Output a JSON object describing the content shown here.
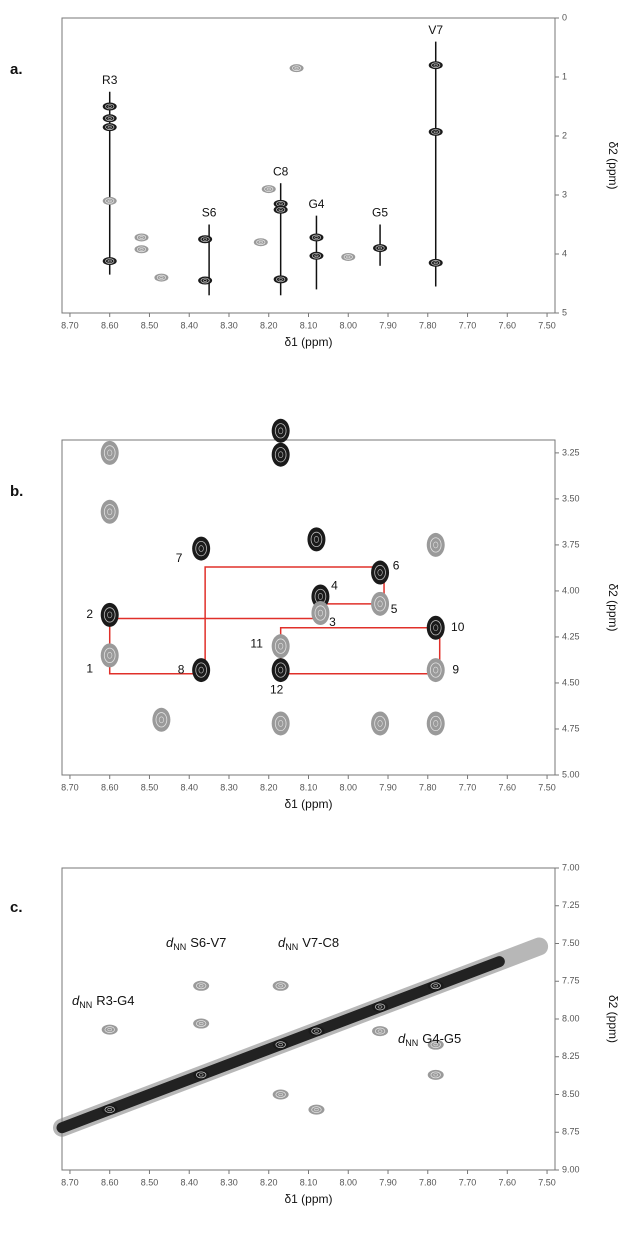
{
  "chart_data": [
    {
      "type": "scatter",
      "panel_label": "a.",
      "x_label": "δ1 (ppm)",
      "y_label": "δ2 (ppm)",
      "xlim": [
        8.72,
        7.48
      ],
      "xticks": [
        {
          "value": 8.7,
          "label": "8.70"
        },
        {
          "value": 8.6,
          "label": "8.60"
        },
        {
          "value": 8.5,
          "label": "8.50"
        },
        {
          "value": 8.4,
          "label": "8.40"
        },
        {
          "value": 8.3,
          "label": "8.30"
        },
        {
          "value": 8.2,
          "label": "8.20"
        },
        {
          "value": 8.1,
          "label": "8.10"
        },
        {
          "value": 8.0,
          "label": "8.00"
        },
        {
          "value": 7.9,
          "label": "7.90"
        },
        {
          "value": 7.8,
          "label": "7.80"
        },
        {
          "value": 7.7,
          "label": "7.70"
        },
        {
          "value": 7.6,
          "label": "7.60"
        },
        {
          "value": 7.5,
          "label": "7.50"
        }
      ],
      "ylim": [
        0,
        5
      ],
      "yticks": [
        0,
        1,
        2,
        3,
        4,
        5
      ],
      "strips": [
        {
          "label": "R3",
          "x": 8.6,
          "y": [
            1.25,
            4.35
          ]
        },
        {
          "label": "S6",
          "x": 8.35,
          "y": [
            3.5,
            4.7
          ]
        },
        {
          "label": "C8",
          "x": 8.17,
          "y": [
            2.8,
            4.7
          ]
        },
        {
          "label": "G4",
          "x": 8.08,
          "y": [
            3.35,
            4.6
          ]
        },
        {
          "label": "G5",
          "x": 7.92,
          "y": [
            3.5,
            4.2
          ]
        },
        {
          "label": "V7",
          "x": 7.78,
          "y": [
            0.4,
            4.55
          ]
        }
      ],
      "series": [
        {
          "color": "#1a1a1a",
          "x": [
            8.6,
            8.6,
            8.6,
            8.6,
            8.36,
            8.36,
            8.17,
            8.17,
            8.17,
            8.08,
            8.08,
            7.92,
            7.78,
            7.78,
            7.78
          ],
          "y": [
            1.5,
            1.7,
            1.85,
            4.12,
            3.75,
            4.45,
            3.15,
            3.25,
            4.43,
            3.72,
            4.03,
            3.9,
            0.8,
            1.93,
            4.15
          ]
        },
        {
          "color": "#9a9a9a",
          "x": [
            8.6,
            8.52,
            8.52,
            8.47,
            8.13,
            8.22,
            8.0,
            8.2
          ],
          "y": [
            3.1,
            3.72,
            3.92,
            4.4,
            0.85,
            3.8,
            4.05,
            2.9
          ]
        }
      ]
    },
    {
      "type": "scatter",
      "panel_label": "b.",
      "x_label": "δ1 (ppm)",
      "y_label": "δ2 (ppm)",
      "xlim": [
        8.72,
        7.48
      ],
      "xticks": [
        {
          "value": 8.7,
          "label": "8.70"
        },
        {
          "value": 8.6,
          "label": "8.60"
        },
        {
          "value": 8.5,
          "label": "8.50"
        },
        {
          "value": 8.4,
          "label": "8.40"
        },
        {
          "value": 8.3,
          "label": "8.30"
        },
        {
          "value": 8.2,
          "label": "8.20"
        },
        {
          "value": 8.1,
          "label": "8.10"
        },
        {
          "value": 8.0,
          "label": "8.00"
        },
        {
          "value": 7.9,
          "label": "7.90"
        },
        {
          "value": 7.8,
          "label": "7.80"
        },
        {
          "value": 7.7,
          "label": "7.70"
        },
        {
          "value": 7.6,
          "label": "7.60"
        },
        {
          "value": 7.5,
          "label": "7.50"
        }
      ],
      "ylim": [
        3.18,
        5.0
      ],
      "yticks": [
        {
          "value": 3.25,
          "label": "3.25"
        },
        {
          "value": 3.5,
          "label": "3.50"
        },
        {
          "value": 3.75,
          "label": "3.75"
        },
        {
          "value": 4.0,
          "label": "4.00"
        },
        {
          "value": 4.25,
          "label": "4.25"
        },
        {
          "value": 4.5,
          "label": "4.50"
        },
        {
          "value": 4.75,
          "label": "4.75"
        },
        {
          "value": 5.0,
          "label": "5.00"
        }
      ],
      "walk": {
        "color": "#e0302a",
        "x": [
          8.6,
          8.6,
          8.36,
          8.36,
          7.91,
          7.91,
          8.06,
          8.06,
          8.6,
          null,
          8.17,
          8.17,
          7.77,
          7.77,
          8.17
        ],
        "y": [
          4.15,
          4.45,
          4.45,
          3.87,
          3.87,
          4.07,
          4.07,
          4.15,
          4.15,
          null,
          4.45,
          4.2,
          4.2,
          4.45,
          4.45
        ]
      },
      "series": [
        {
          "color": "#1a1a1a",
          "x": [
            8.17,
            8.17,
            8.37,
            8.08,
            7.92,
            8.07,
            8.6,
            7.78,
            8.37,
            8.17
          ],
          "y": [
            3.13,
            3.26,
            3.77,
            3.72,
            3.9,
            4.03,
            4.13,
            4.2,
            4.43,
            4.43
          ],
          "labels": [
            null,
            null,
            "7",
            null,
            "6",
            "4",
            "2",
            "10",
            "8",
            "12"
          ]
        },
        {
          "color": "#9a9a9a",
          "x": [
            8.6,
            8.17,
            8.07,
            7.92,
            7.78,
            8.6,
            8.6,
            7.78,
            7.78,
            8.17,
            7.92,
            8.47
          ],
          "y": [
            4.35,
            4.3,
            4.12,
            4.07,
            4.43,
            3.25,
            3.57,
            3.75,
            4.72,
            4.72,
            4.72,
            4.7
          ],
          "labels": [
            "1",
            "11",
            "3",
            "5",
            "9",
            null,
            null,
            null,
            null,
            null,
            null,
            null
          ]
        }
      ]
    },
    {
      "type": "scatter",
      "panel_label": "c.",
      "x_label": "δ1 (ppm)",
      "y_label": "δ2 (ppm)",
      "xlim": [
        8.72,
        7.48
      ],
      "xticks": [
        {
          "value": 8.7,
          "label": "8.70"
        },
        {
          "value": 8.6,
          "label": "8.60"
        },
        {
          "value": 8.5,
          "label": "8.50"
        },
        {
          "value": 8.4,
          "label": "8.40"
        },
        {
          "value": 8.3,
          "label": "8.30"
        },
        {
          "value": 8.2,
          "label": "8.20"
        },
        {
          "value": 8.1,
          "label": "8.10"
        },
        {
          "value": 8.0,
          "label": "8.00"
        },
        {
          "value": 7.9,
          "label": "7.90"
        },
        {
          "value": 7.8,
          "label": "7.80"
        },
        {
          "value": 7.7,
          "label": "7.70"
        },
        {
          "value": 7.6,
          "label": "7.60"
        },
        {
          "value": 7.5,
          "label": "7.50"
        }
      ],
      "ylim": [
        7.0,
        9.0
      ],
      "yticks": [
        {
          "value": 7.0,
          "label": "7.00"
        },
        {
          "value": 7.25,
          "label": "7.25"
        },
        {
          "value": 7.5,
          "label": "7.50"
        },
        {
          "value": 7.75,
          "label": "7.75"
        },
        {
          "value": 8.0,
          "label": "8.00"
        },
        {
          "value": 8.25,
          "label": "8.25"
        },
        {
          "value": 8.5,
          "label": "8.50"
        },
        {
          "value": 8.75,
          "label": "8.75"
        },
        {
          "value": 9.0,
          "label": "9.00"
        }
      ],
      "annotations": [
        {
          "symbol": "d",
          "sub": "NN",
          "text": "R3-G4"
        },
        {
          "symbol": "d",
          "sub": "NN",
          "text": "S6-V7"
        },
        {
          "symbol": "d",
          "sub": "NN",
          "text": "V7-C8"
        },
        {
          "symbol": "d",
          "sub": "NN",
          "text": "G4-G5"
        }
      ],
      "series": [
        {
          "color": "#1a1a1a",
          "x": [
            8.6,
            8.37,
            8.17,
            8.08,
            7.92,
            7.78
          ],
          "y": [
            8.6,
            8.37,
            8.17,
            8.08,
            7.92,
            7.78
          ]
        },
        {
          "color": "#9a9a9a",
          "x": [
            8.6,
            8.37,
            8.17,
            7.92,
            7.78,
            8.08,
            8.37,
            8.17,
            7.78
          ],
          "y": [
            8.07,
            7.78,
            7.78,
            8.08,
            8.37,
            8.6,
            8.03,
            8.5,
            8.17
          ]
        }
      ]
    }
  ]
}
